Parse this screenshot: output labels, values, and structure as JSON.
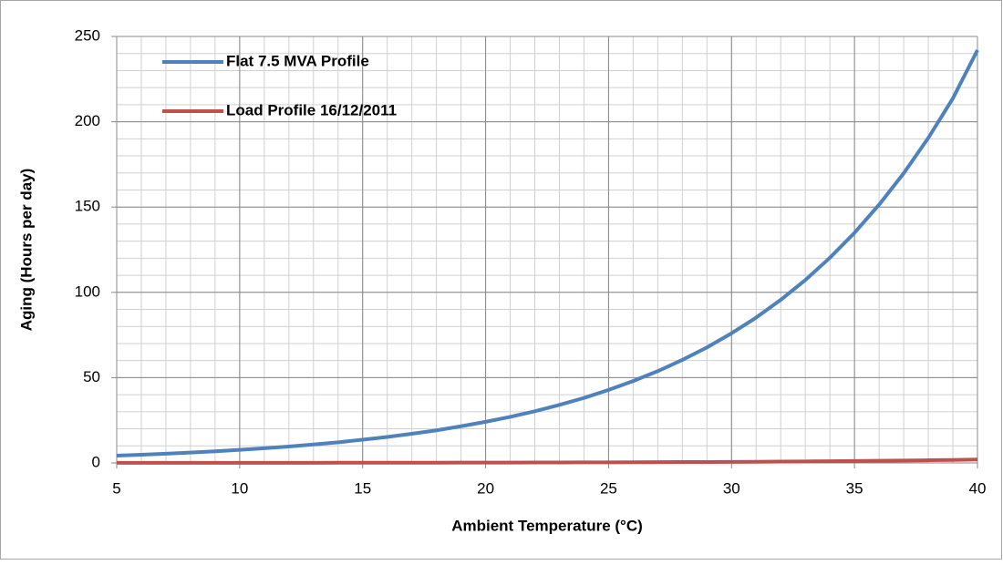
{
  "chart_data": {
    "type": "line",
    "xlabel": "Ambient Temperature (°C)",
    "ylabel": "Aging (Hours per day)",
    "x": [
      5,
      6,
      7,
      8,
      9,
      10,
      11,
      12,
      13,
      14,
      15,
      16,
      17,
      18,
      19,
      20,
      21,
      22,
      23,
      24,
      25,
      26,
      27,
      28,
      29,
      30,
      31,
      32,
      33,
      34,
      35,
      36,
      37,
      38,
      39,
      40
    ],
    "series": [
      {
        "name": "Flat 7.5 MVA Profile",
        "color": "#4f81bd",
        "values": [
          4.3,
          4.8,
          5.4,
          6.1,
          6.8,
          7.7,
          8.6,
          9.6,
          10.8,
          12.1,
          13.6,
          15.2,
          17.1,
          19.1,
          21.5,
          24.1,
          27.0,
          30.3,
          34.0,
          38.1,
          42.8,
          48.0,
          53.8,
          60.4,
          67.7,
          76.0,
          85.2,
          95.6,
          107.2,
          120.3,
          134.9,
          151.4,
          169.8,
          190.5,
          213.7,
          242
        ]
      },
      {
        "name": "Load Profile 16/12/2011",
        "color": "#c0504d",
        "values": [
          0.04,
          0.04,
          0.04,
          0.05,
          0.06,
          0.06,
          0.07,
          0.08,
          0.09,
          0.1,
          0.11,
          0.13,
          0.14,
          0.16,
          0.18,
          0.2,
          0.22,
          0.25,
          0.28,
          0.31,
          0.35,
          0.4,
          0.44,
          0.5,
          0.56,
          0.63,
          0.7,
          0.79,
          0.89,
          0.99,
          1.11,
          1.25,
          1.4,
          1.57,
          1.77,
          2.0
        ]
      }
    ],
    "xlim": [
      5,
      40
    ],
    "xticks": [
      5,
      10,
      15,
      20,
      25,
      30,
      35,
      40
    ],
    "ylim": [
      0,
      250
    ],
    "yticks": [
      0,
      50,
      100,
      150,
      200,
      250
    ],
    "grid": true,
    "minor_grid_step": {
      "x": 1,
      "y": 10
    },
    "legend": "upper left"
  }
}
